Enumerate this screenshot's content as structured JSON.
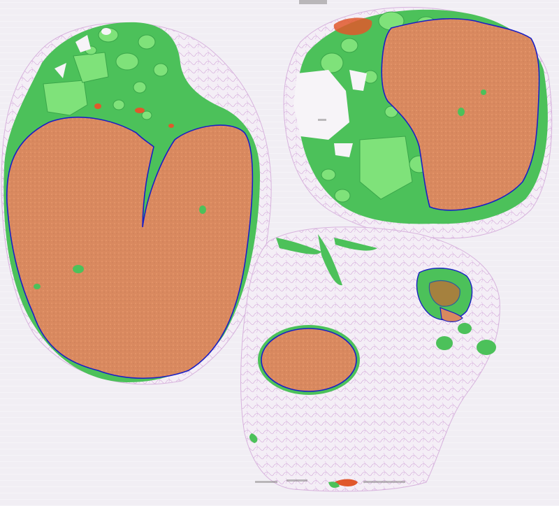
{
  "image": {
    "kind": "whole-slide histology with segmentation overlay",
    "background_color": "#f1eef4"
  },
  "legend_colors": {
    "tumor_region": "#d98a63",
    "tumor_fill_light": "#e3976b",
    "stroma_region": "#4cc15a",
    "stroma_light": "#7fe27a",
    "contour": "#1a1fc4",
    "necrosis": "#e0582c",
    "fat_tissue": "#c99ad0",
    "fat_outline": "#b06fbf"
  },
  "specimens": [
    {
      "id": "left-large-tissue"
    },
    {
      "id": "top-right-tissue"
    },
    {
      "id": "bottom-right-tissue"
    }
  ]
}
